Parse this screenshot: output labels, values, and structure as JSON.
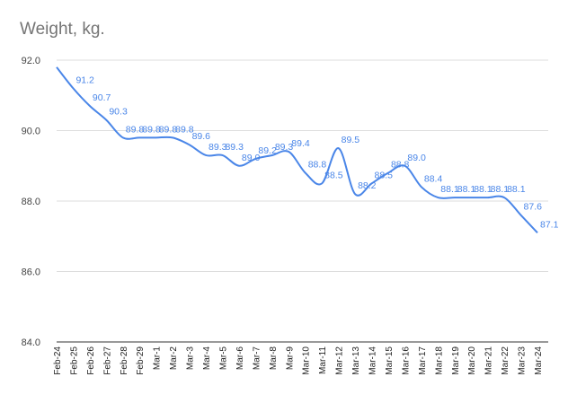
{
  "chart_data": {
    "type": "line",
    "title": "Weight, kg.",
    "xlabel": "",
    "ylabel": "",
    "ylim": [
      84.0,
      92.0
    ],
    "yticks": [
      "84.0",
      "86.0",
      "88.0",
      "90.0",
      "92.0"
    ],
    "grid": true,
    "legend": "none",
    "color": "#4a86e8",
    "categories": [
      "Feb-24",
      "Feb-25",
      "Feb-26",
      "Feb-27",
      "Feb-28",
      "Feb-29",
      "Mar-1",
      "Mar-2",
      "Mar-3",
      "Mar-4",
      "Mar-5",
      "Mar-6",
      "Mar-7",
      "Mar-8",
      "Mar-9",
      "Mar-10",
      "Mar-11",
      "Mar-12",
      "Mar-13",
      "Mar-14",
      "Mar-15",
      "Mar-16",
      "Mar-17",
      "Mar-18",
      "Mar-19",
      "Mar-20",
      "Mar-21",
      "Mar-22",
      "Mar-23",
      "Mar-24"
    ],
    "values": [
      91.8,
      91.2,
      90.7,
      90.3,
      89.8,
      89.8,
      89.8,
      89.8,
      89.6,
      89.3,
      89.3,
      89.0,
      89.2,
      89.3,
      89.4,
      88.8,
      88.5,
      89.5,
      88.2,
      88.5,
      88.8,
      89.0,
      88.4,
      88.1,
      88.1,
      88.1,
      88.1,
      88.1,
      87.6,
      87.1
    ],
    "data_labels": [
      "",
      "91.2",
      "90.7",
      "90.3",
      "89.8",
      "89.8",
      "89.8",
      "89.8",
      "89.6",
      "89.3",
      "89.3",
      "89.0",
      "89.2",
      "89.3",
      "89.4",
      "88.8",
      "88.5",
      "89.5",
      "88.2",
      "88.5",
      "88.8",
      "89.0",
      "88.4",
      "88.1",
      "88.1",
      "88.1",
      "88.1",
      "88.1",
      "87.6",
      "87.1"
    ]
  }
}
